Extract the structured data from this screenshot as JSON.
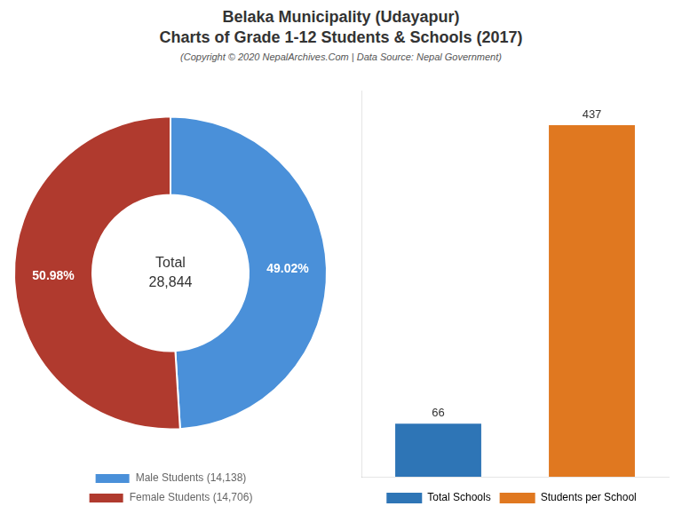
{
  "chart_data": [
    {
      "type": "doughnut",
      "title": [
        "Belaka Municipality (Udayapur)",
        "Charts of Grade 1-12 Students & Schools (2017)"
      ],
      "subtitle": "(Copyright © 2020 NepalArchives.Com | Data Source: Nepal Government)",
      "categories": [
        "Male Students (14,138)",
        "Female Students (14,706)"
      ],
      "values": [
        49.02,
        50.98
      ],
      "value_labels": [
        "49.02%",
        "50.98%"
      ],
      "data_labels": true,
      "colors": [
        "#4a90d9",
        "#b03a2e"
      ],
      "annotations": [
        "Total",
        "28,844"
      ],
      "legend": "bottom"
    },
    {
      "type": "bar",
      "categories": [
        "Total Schools",
        "Students per School"
      ],
      "values": [
        66,
        437
      ],
      "colors": [
        "#2e75b6",
        "#e07820"
      ],
      "ylim": [
        0,
        480
      ],
      "data_labels": true,
      "tick_labels": false,
      "grid": false,
      "legend": "bottom"
    }
  ]
}
